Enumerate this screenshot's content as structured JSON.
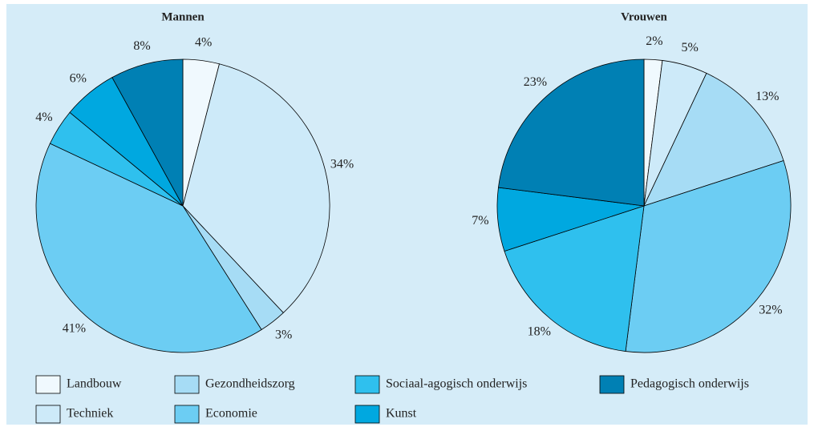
{
  "chart_data": [
    {
      "type": "pie",
      "title": "Mannen",
      "categories": [
        "Landbouw",
        "Techniek",
        "Gezondheidszorg",
        "Economie",
        "Sociaal-agogisch onderwijs",
        "Kunst",
        "Pedagogisch onderwijs"
      ],
      "values": [
        4,
        34,
        3,
        41,
        4,
        6,
        8
      ],
      "value_labels": [
        "4%",
        "34%",
        "3%",
        "41%",
        "4%",
        "6%",
        "8%"
      ],
      "colors": [
        "#f0f9fe",
        "#cdeaf9",
        "#a6dcf5",
        "#6ccdf3",
        "#2fc0ee",
        "#00a8e0",
        "#0080b4"
      ]
    },
    {
      "type": "pie",
      "title": "Vrouwen",
      "categories": [
        "Landbouw",
        "Techniek",
        "Gezondheidszorg",
        "Economie",
        "Sociaal-agogisch onderwijs",
        "Kunst",
        "Pedagogisch onderwijs"
      ],
      "values": [
        2,
        5,
        13,
        32,
        18,
        7,
        23
      ],
      "value_labels": [
        "2%",
        "5%",
        "13%",
        "32%",
        "18%",
        "7%",
        "23%"
      ],
      "colors": [
        "#f0f9fe",
        "#cdeaf9",
        "#a6dcf5",
        "#6ccdf3",
        "#2fc0ee",
        "#00a8e0",
        "#0080b4"
      ]
    }
  ]
}
